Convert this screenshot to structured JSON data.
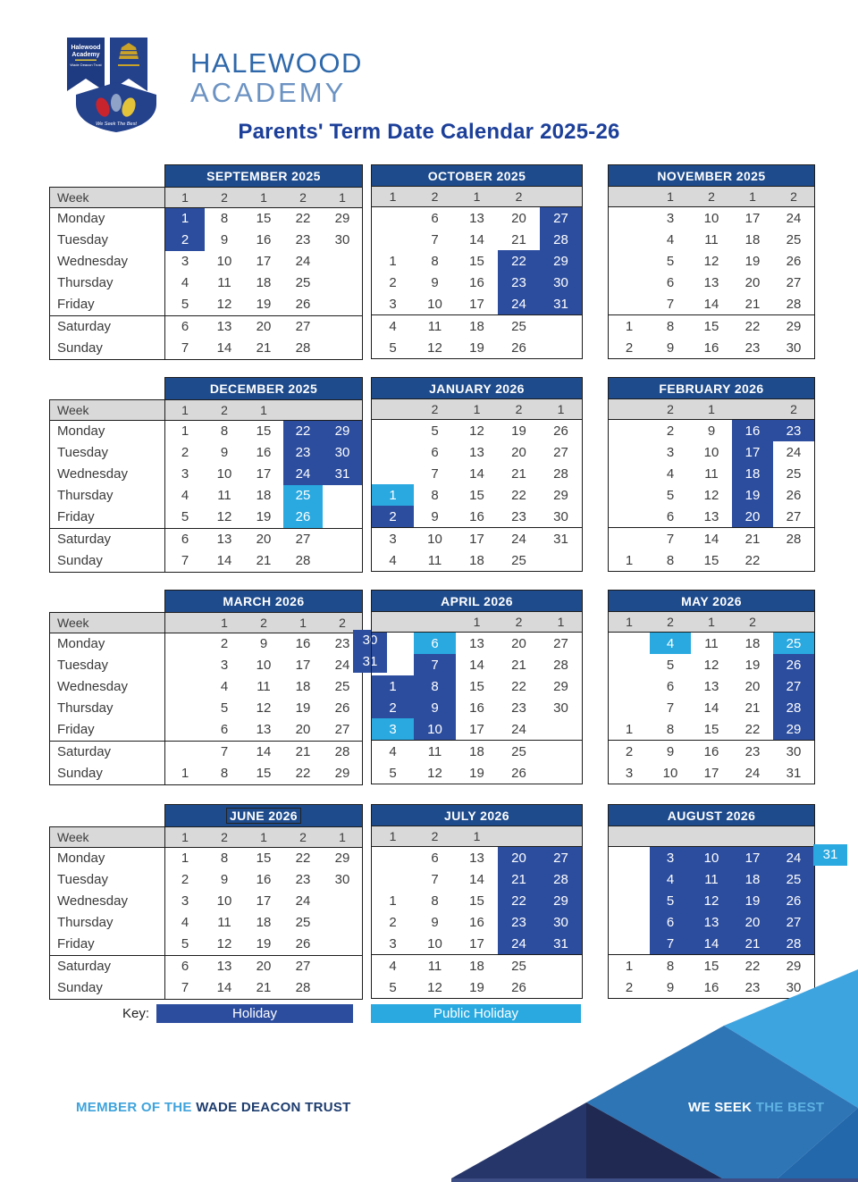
{
  "header": {
    "school_line1": "HALEWOOD",
    "school_line2": "ACADEMY",
    "title": "Parents' Term Date Calendar 2025-26"
  },
  "logo": {
    "banner_line1": "Halewood",
    "banner_line2": "Academy",
    "trust_line": "Wade Deacon Trust",
    "shield_motto": "We Seek The Best"
  },
  "calendar": {
    "week_label": "Week",
    "day_labels": [
      "Monday",
      "Tuesday",
      "Wednesday",
      "Thursday",
      "Friday",
      "Saturday",
      "Sunday"
    ],
    "legend_types": {
      "h": "Holiday",
      "p": "Public Holiday"
    },
    "months": [
      {
        "name": "SEPTEMBER 2025",
        "week": [
          "1",
          "2",
          "1",
          "2",
          "1"
        ],
        "rows": [
          [
            {
              "v": "1",
              "t": "h"
            },
            "8",
            "15",
            "22",
            "29"
          ],
          [
            {
              "v": "2",
              "t": "h"
            },
            "9",
            "16",
            "23",
            "30"
          ],
          [
            "3",
            "10",
            "17",
            "24",
            ""
          ],
          [
            "4",
            "11",
            "18",
            "25",
            ""
          ],
          [
            "5",
            "12",
            "19",
            "26",
            ""
          ],
          [
            "6",
            "13",
            "20",
            "27",
            ""
          ],
          [
            "7",
            "14",
            "21",
            "28",
            ""
          ]
        ]
      },
      {
        "name": "OCTOBER 2025",
        "week": [
          "1",
          "2",
          "1",
          "2",
          ""
        ],
        "rows": [
          [
            "",
            "6",
            "13",
            "20",
            {
              "v": "27",
              "t": "h"
            }
          ],
          [
            "",
            "7",
            "14",
            "21",
            {
              "v": "28",
              "t": "h"
            }
          ],
          [
            "1",
            "8",
            "15",
            {
              "v": "22",
              "t": "h"
            },
            {
              "v": "29",
              "t": "h"
            }
          ],
          [
            "2",
            "9",
            "16",
            {
              "v": "23",
              "t": "h"
            },
            {
              "v": "30",
              "t": "h"
            }
          ],
          [
            "3",
            "10",
            "17",
            {
              "v": "24",
              "t": "h"
            },
            {
              "v": "31",
              "t": "h"
            }
          ],
          [
            "4",
            "11",
            "18",
            "25",
            ""
          ],
          [
            "5",
            "12",
            "19",
            "26",
            ""
          ]
        ]
      },
      {
        "name": "NOVEMBER 2025",
        "week": [
          "",
          "1",
          "2",
          "1",
          "2"
        ],
        "rows": [
          [
            "",
            "3",
            "10",
            "17",
            "24"
          ],
          [
            "",
            "4",
            "11",
            "18",
            "25"
          ],
          [
            "",
            "5",
            "12",
            "19",
            "26"
          ],
          [
            "",
            "6",
            "13",
            "20",
            "27"
          ],
          [
            "",
            "7",
            "14",
            "21",
            "28"
          ],
          [
            "1",
            "8",
            "15",
            "22",
            "29"
          ],
          [
            "2",
            "9",
            "16",
            "23",
            "30"
          ]
        ]
      },
      {
        "name": "DECEMBER 2025",
        "week": [
          "1",
          "2",
          "1",
          "",
          ""
        ],
        "rows": [
          [
            "1",
            "8",
            "15",
            {
              "v": "22",
              "t": "h"
            },
            {
              "v": "29",
              "t": "h"
            }
          ],
          [
            "2",
            "9",
            "16",
            {
              "v": "23",
              "t": "h"
            },
            {
              "v": "30",
              "t": "h"
            }
          ],
          [
            "3",
            "10",
            "17",
            {
              "v": "24",
              "t": "h"
            },
            {
              "v": "31",
              "t": "h"
            }
          ],
          [
            "4",
            "11",
            "18",
            {
              "v": "25",
              "t": "p"
            },
            ""
          ],
          [
            "5",
            "12",
            "19",
            {
              "v": "26",
              "t": "p"
            },
            ""
          ],
          [
            "6",
            "13",
            "20",
            "27",
            ""
          ],
          [
            "7",
            "14",
            "21",
            "28",
            ""
          ]
        ]
      },
      {
        "name": "JANUARY 2026",
        "week": [
          "",
          "2",
          "1",
          "2",
          "1"
        ],
        "rows": [
          [
            "",
            "5",
            "12",
            "19",
            "26"
          ],
          [
            "",
            "6",
            "13",
            "20",
            "27"
          ],
          [
            "",
            "7",
            "14",
            "21",
            "28"
          ],
          [
            {
              "v": "1",
              "t": "p"
            },
            "8",
            "15",
            "22",
            "29"
          ],
          [
            {
              "v": "2",
              "t": "h"
            },
            "9",
            "16",
            "23",
            "30"
          ],
          [
            "3",
            "10",
            "17",
            "24",
            "31"
          ],
          [
            "4",
            "11",
            "18",
            "25",
            ""
          ]
        ]
      },
      {
        "name": "FEBRUARY 2026",
        "week": [
          "",
          "2",
          "1",
          "",
          "2"
        ],
        "rows": [
          [
            "",
            "2",
            "9",
            {
              "v": "16",
              "t": "h"
            },
            {
              "v": "23",
              "t": "h"
            }
          ],
          [
            "",
            "3",
            "10",
            {
              "v": "17",
              "t": "h"
            },
            "24"
          ],
          [
            "",
            "4",
            "11",
            {
              "v": "18",
              "t": "h"
            },
            "25"
          ],
          [
            "",
            "5",
            "12",
            {
              "v": "19",
              "t": "h"
            },
            "26"
          ],
          [
            "",
            "6",
            "13",
            {
              "v": "20",
              "t": "h"
            },
            "27"
          ],
          [
            "",
            "7",
            "14",
            "21",
            "28"
          ],
          [
            "1",
            "8",
            "15",
            "22",
            ""
          ]
        ]
      },
      {
        "name": "MARCH 2026",
        "week": [
          "",
          "1",
          "2",
          "1",
          "2"
        ],
        "rows": [
          [
            "",
            "2",
            "9",
            "16",
            "23"
          ],
          [
            "",
            "3",
            "10",
            "17",
            "24"
          ],
          [
            "",
            "4",
            "11",
            "18",
            "25"
          ],
          [
            "",
            "5",
            "12",
            "19",
            "26"
          ],
          [
            "",
            "6",
            "13",
            "20",
            "27"
          ],
          [
            "",
            "7",
            "14",
            "21",
            "28"
          ],
          [
            "1",
            "8",
            "15",
            "22",
            "29"
          ]
        ],
        "overflow": [
          {
            "row": 0,
            "v": "30",
            "t": "h"
          },
          {
            "row": 1,
            "v": "31",
            "t": "h"
          }
        ]
      },
      {
        "name": "APRIL 2026",
        "week": [
          "",
          "",
          "1",
          "2",
          "1"
        ],
        "rows": [
          [
            "",
            {
              "v": "6",
              "t": "p"
            },
            "13",
            "20",
            "27"
          ],
          [
            "",
            {
              "v": "7",
              "t": "h"
            },
            "14",
            "21",
            "28"
          ],
          [
            {
              "v": "1",
              "t": "h"
            },
            {
              "v": "8",
              "t": "h"
            },
            "15",
            "22",
            "29"
          ],
          [
            {
              "v": "2",
              "t": "h"
            },
            {
              "v": "9",
              "t": "h"
            },
            "16",
            "23",
            "30"
          ],
          [
            {
              "v": "3",
              "t": "p"
            },
            {
              "v": "10",
              "t": "h"
            },
            "17",
            "24",
            ""
          ],
          [
            "4",
            "11",
            "18",
            "25",
            ""
          ],
          [
            "5",
            "12",
            "19",
            "26",
            ""
          ]
        ]
      },
      {
        "name": "MAY 2026",
        "week": [
          "1",
          "2",
          "1",
          "2",
          ""
        ],
        "rows": [
          [
            "",
            {
              "v": "4",
              "t": "p"
            },
            "11",
            "18",
            {
              "v": "25",
              "t": "p"
            }
          ],
          [
            "",
            "5",
            "12",
            "19",
            {
              "v": "26",
              "t": "h"
            }
          ],
          [
            "",
            "6",
            "13",
            "20",
            {
              "v": "27",
              "t": "h"
            }
          ],
          [
            "",
            "7",
            "14",
            "21",
            {
              "v": "28",
              "t": "h"
            }
          ],
          [
            "1",
            "8",
            "15",
            "22",
            {
              "v": "29",
              "t": "h"
            }
          ],
          [
            "2",
            "9",
            "16",
            "23",
            "30"
          ],
          [
            "3",
            "10",
            "17",
            "24",
            "31"
          ]
        ]
      },
      {
        "name": "JUNE 2026",
        "week": [
          "1",
          "2",
          "1",
          "2",
          "1"
        ],
        "boxed_title": true,
        "rows": [
          [
            "1",
            "8",
            "15",
            "22",
            "29"
          ],
          [
            "2",
            "9",
            "16",
            "23",
            "30"
          ],
          [
            "3",
            "10",
            "17",
            "24",
            ""
          ],
          [
            "4",
            "11",
            "18",
            "25",
            ""
          ],
          [
            "5",
            "12",
            "19",
            "26",
            ""
          ],
          [
            "6",
            "13",
            "20",
            "27",
            ""
          ],
          [
            "7",
            "14",
            "21",
            "28",
            ""
          ]
        ]
      },
      {
        "name": "JULY 2026",
        "week": [
          "1",
          "2",
          "1",
          "",
          ""
        ],
        "rows": [
          [
            "",
            "6",
            "13",
            {
              "v": "20",
              "t": "h"
            },
            {
              "v": "27",
              "t": "h"
            }
          ],
          [
            "",
            "7",
            "14",
            {
              "v": "21",
              "t": "h"
            },
            {
              "v": "28",
              "t": "h"
            }
          ],
          [
            "1",
            "8",
            "15",
            {
              "v": "22",
              "t": "h"
            },
            {
              "v": "29",
              "t": "h"
            }
          ],
          [
            "2",
            "9",
            "16",
            {
              "v": "23",
              "t": "h"
            },
            {
              "v": "30",
              "t": "h"
            }
          ],
          [
            "3",
            "10",
            "17",
            {
              "v": "24",
              "t": "h"
            },
            {
              "v": "31",
              "t": "h"
            }
          ],
          [
            "4",
            "11",
            "18",
            "25",
            ""
          ],
          [
            "5",
            "12",
            "19",
            "26",
            ""
          ]
        ]
      },
      {
        "name": "AUGUST 2026",
        "week": [
          "",
          "",
          "",
          "",
          ""
        ],
        "rows": [
          [
            "",
            {
              "v": "3",
              "t": "h"
            },
            {
              "v": "10",
              "t": "h"
            },
            {
              "v": "17",
              "t": "h"
            },
            {
              "v": "24",
              "t": "h"
            }
          ],
          [
            "",
            {
              "v": "4",
              "t": "h"
            },
            {
              "v": "11",
              "t": "h"
            },
            {
              "v": "18",
              "t": "h"
            },
            {
              "v": "25",
              "t": "h"
            }
          ],
          [
            "",
            {
              "v": "5",
              "t": "h"
            },
            {
              "v": "12",
              "t": "h"
            },
            {
              "v": "19",
              "t": "h"
            },
            {
              "v": "26",
              "t": "h"
            }
          ],
          [
            "",
            {
              "v": "6",
              "t": "h"
            },
            {
              "v": "13",
              "t": "h"
            },
            {
              "v": "20",
              "t": "h"
            },
            {
              "v": "27",
              "t": "h"
            }
          ],
          [
            "",
            {
              "v": "7",
              "t": "h"
            },
            {
              "v": "14",
              "t": "h"
            },
            {
              "v": "21",
              "t": "h"
            },
            {
              "v": "28",
              "t": "h"
            }
          ],
          [
            "1",
            "8",
            "15",
            "22",
            "29"
          ],
          [
            "2",
            "9",
            "16",
            "23",
            "30"
          ]
        ],
        "overflow": [
          {
            "row": 0,
            "v": "31",
            "t": "p"
          }
        ]
      }
    ]
  },
  "key": {
    "label": "Key:",
    "holiday_label": "Holiday",
    "public_label": "Public Holiday"
  },
  "footer": {
    "member_prefix": "MEMBER OF THE",
    "trust_name": "WADE DEACON TRUST",
    "motto_white": "WE SEEK",
    "motto_light": "THE BEST"
  },
  "colors": {
    "month_header": "#1e4b8c",
    "holiday": "#2c4d9e",
    "public_holiday": "#29a9e0",
    "week_row_bg": "#d9d9d9",
    "title_text": "#1c3f99",
    "brand_blue": "#2e68aa",
    "brand_blue_light": "#6b92c2",
    "footer_light_blue": "#3fa3dc",
    "footer_navy": "#1d3c6e",
    "art_sky": "#3ea4e0",
    "art_medium": "#2e75b6",
    "art_corner": "#2368ab",
    "art_navy1": "#26366b",
    "art_navy2": "#1f2951",
    "art_strip": "#3d4d85"
  }
}
